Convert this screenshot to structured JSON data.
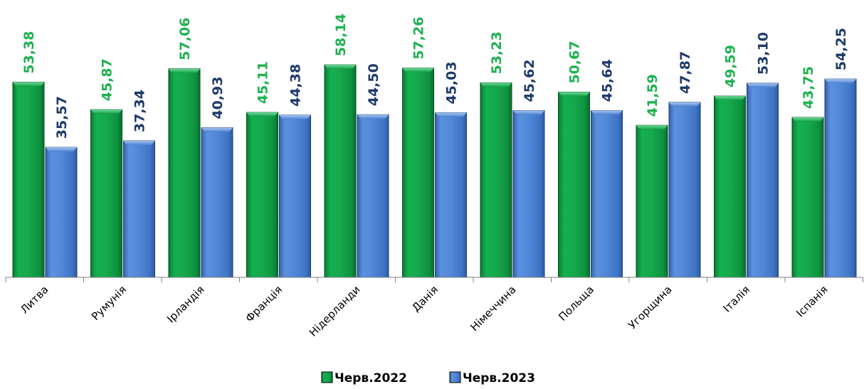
{
  "chart_data": {
    "type": "bar",
    "categories": [
      "Литва",
      "Румунія",
      "Ірландія",
      "Франція",
      "Нідерланди",
      "Данія",
      "Німеччина",
      "Польща",
      "Угорщина",
      "Італія",
      "Іспанія"
    ],
    "series": [
      {
        "name": "Черв.2022",
        "values": [
          53.38,
          45.87,
          57.06,
          45.11,
          58.14,
          57.26,
          53.23,
          50.67,
          41.59,
          49.59,
          43.75
        ],
        "labels": [
          "53,38",
          "45,87",
          "57,06",
          "45,11",
          "58,14",
          "57,26",
          "53,23",
          "50,67",
          "41,59",
          "49,59",
          "43,75"
        ],
        "color": "#0fa24a",
        "label_color": "#1eb24f"
      },
      {
        "name": "Черв.2023",
        "values": [
          35.57,
          37.34,
          40.93,
          44.38,
          44.5,
          45.03,
          45.62,
          45.64,
          47.87,
          53.1,
          54.25
        ],
        "labels": [
          "35,57",
          "37,34",
          "40,93",
          "44,38",
          "44,50",
          "45,03",
          "45,62",
          "45,64",
          "47,87",
          "53,10",
          "54,25"
        ],
        "color": "#4a7fd0",
        "label_color": "#1f3a6b"
      }
    ],
    "ylim": [
      0,
      60
    ],
    "legend_position": "bottom",
    "grid": false
  }
}
